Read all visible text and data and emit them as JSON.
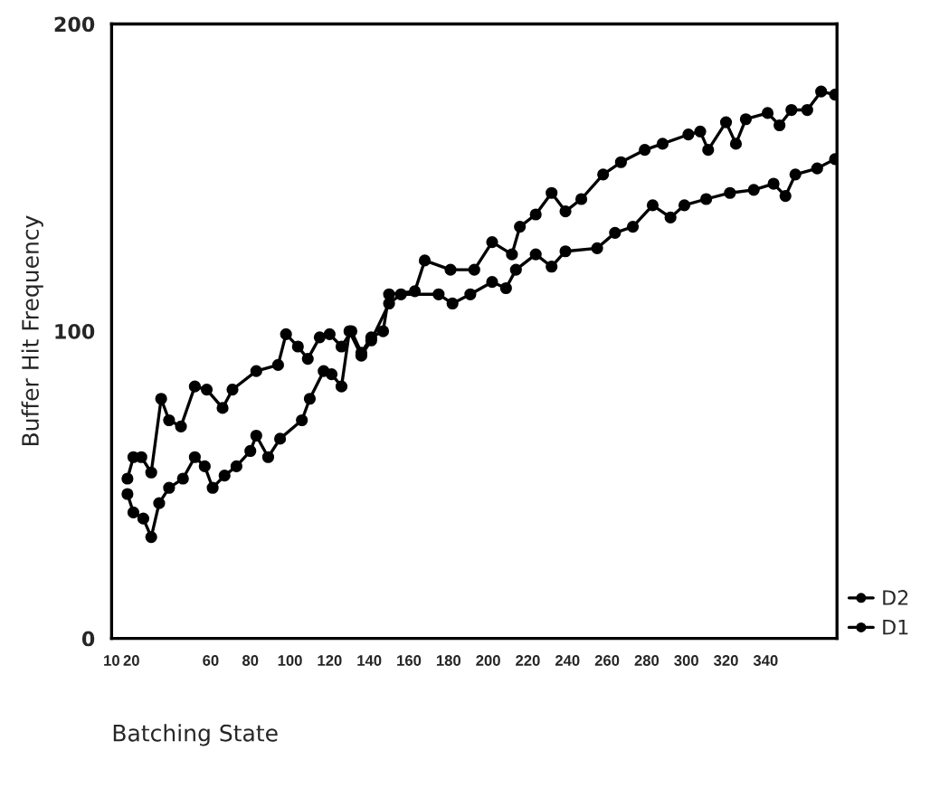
{
  "chart_data": {
    "type": "line",
    "xlabel": "Batching State",
    "ylabel": "Buffer Hit Frequency",
    "xlim": [
      10,
      376
    ],
    "ylim": [
      0,
      200
    ],
    "yticks": [
      0,
      100,
      200
    ],
    "xticks": [
      10,
      20,
      60,
      80,
      100,
      120,
      140,
      160,
      180,
      200,
      220,
      240,
      260,
      280,
      300,
      320,
      340
    ],
    "grid": false,
    "legend": "bottom right",
    "marker": "circle",
    "line_style": "solid",
    "series": [
      {
        "name": "D2",
        "color": "#000000",
        "x": [
          18,
          21,
          25,
          30,
          35,
          39,
          45,
          52,
          58,
          66,
          71,
          83,
          94,
          98,
          104,
          109,
          115,
          120,
          126,
          131,
          136,
          141,
          147,
          150,
          163,
          168,
          181,
          193,
          202,
          212,
          216,
          224,
          232,
          239,
          247,
          258,
          267,
          279,
          288,
          301,
          307,
          311,
          320,
          325,
          330,
          341,
          347,
          353,
          361,
          368,
          375
        ],
        "values": [
          52,
          59,
          59,
          54,
          78,
          71,
          69,
          82,
          81,
          75,
          81,
          87,
          89,
          99,
          95,
          91,
          98,
          99,
          95,
          100,
          93,
          98,
          100,
          112,
          113,
          123,
          120,
          120,
          129,
          125,
          134,
          138,
          145,
          139,
          143,
          151,
          155,
          159,
          161,
          164,
          165,
          159,
          168,
          161,
          169,
          171,
          167,
          172,
          172,
          178,
          177
        ]
      },
      {
        "name": "D1",
        "color": "#000000",
        "x": [
          18,
          21,
          26,
          30,
          34,
          39,
          46,
          52,
          57,
          61,
          67,
          73,
          80,
          83,
          89,
          95,
          106,
          110,
          117,
          121,
          126,
          130,
          136,
          141,
          150,
          156,
          175,
          182,
          191,
          202,
          209,
          214,
          224,
          232,
          239,
          255,
          264,
          273,
          283,
          292,
          299,
          310,
          322,
          334,
          344,
          350,
          355,
          366,
          375
        ],
        "values": [
          47,
          41,
          39,
          33,
          44,
          49,
          52,
          59,
          56,
          49,
          53,
          56,
          61,
          66,
          59,
          65,
          71,
          78,
          87,
          86,
          82,
          100,
          92,
          97,
          109,
          112,
          112,
          109,
          112,
          116,
          114,
          120,
          125,
          121,
          126,
          127,
          132,
          134,
          141,
          137,
          141,
          143,
          145,
          146,
          148,
          144,
          151,
          153,
          156
        ]
      }
    ]
  }
}
